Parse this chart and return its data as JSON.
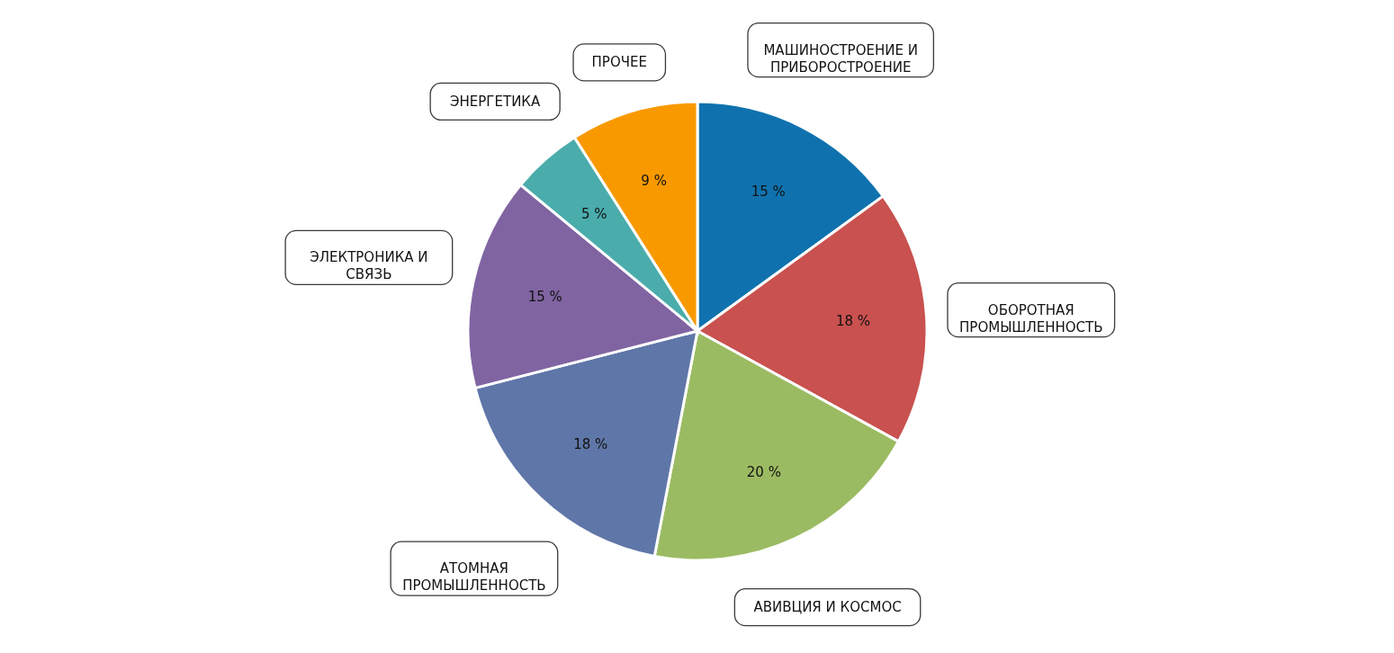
{
  "chart_data": {
    "type": "pie",
    "categories": [
      "МАШИНОСТРОЕНИЕ И\nПРИБОРОСТРОЕНИЕ",
      "ОБОРОТНАЯ\nПРОМЫШЛЕННОСТЬ",
      "АВИВЦИЯ И КОСМОС",
      "АТОМНАЯ\nПРОМЫШЛЕННОСТЬ",
      "ЭЛЕКТРОНИКА  И\nСВЯЗЬ",
      "ЭНЕРГЕТИКА",
      "ПРОЧЕЕ"
    ],
    "values": [
      15,
      18,
      20,
      18,
      15,
      5,
      9
    ],
    "colors": [
      "#0f72ae",
      "#c9514f",
      "#9bbb62",
      "#5f76a8",
      "#8064a2",
      "#4bacac",
      "#f99900"
    ],
    "value_labels": [
      "15 %",
      "18 %",
      "20 %",
      "18 %",
      "15 %",
      "5 %",
      "9 %"
    ]
  }
}
